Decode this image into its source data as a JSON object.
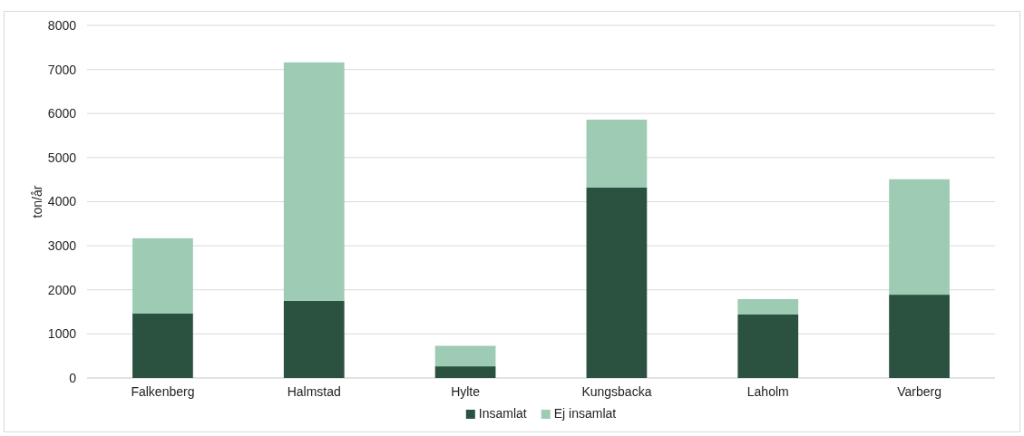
{
  "chart_data": {
    "type": "bar",
    "stacked": true,
    "ylabel": "ton/år",
    "categories": [
      "Falkenberg",
      "Halmstad",
      "Hylte",
      "Kungsbacka",
      "Laholm",
      "Varberg"
    ],
    "series": [
      {
        "name": "Insamlat",
        "color": "#2b5240",
        "values": [
          1460,
          1750,
          265,
          4320,
          1440,
          1890
        ]
      },
      {
        "name": "Ej insamlat",
        "color": "#9dcbb3",
        "values": [
          1710,
          5410,
          465,
          1540,
          350,
          2620
        ]
      }
    ],
    "ylim": [
      0,
      8000
    ],
    "yticks": [
      0,
      1000,
      2000,
      3000,
      4000,
      5000,
      6000,
      7000,
      8000
    ],
    "grid": "y",
    "legend": "bottom"
  }
}
